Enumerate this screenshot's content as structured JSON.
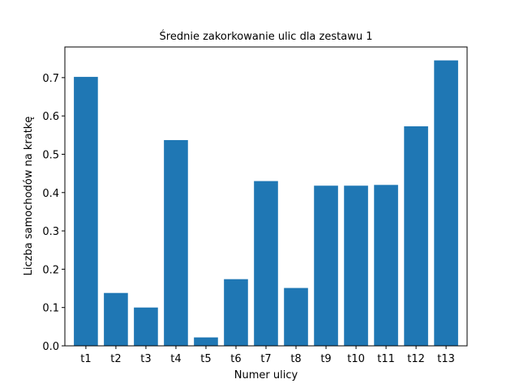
{
  "chart_data": {
    "type": "bar",
    "title": "Średnie zakorkowanie ulic dla zestawu 1",
    "xlabel": "Numer ulicy",
    "ylabel": "Liczba samochodów na kratkę",
    "categories": [
      "t1",
      "t2",
      "t3",
      "t4",
      "t5",
      "t6",
      "t7",
      "t8",
      "t9",
      "t10",
      "t11",
      "t12",
      "t13"
    ],
    "values": [
      0.702,
      0.138,
      0.1,
      0.537,
      0.022,
      0.174,
      0.43,
      0.151,
      0.418,
      0.418,
      0.42,
      0.573,
      0.745
    ],
    "ylim": [
      0,
      0.78
    ],
    "yticks": [
      "0.0",
      "0.1",
      "0.2",
      "0.3",
      "0.4",
      "0.5",
      "0.6",
      "0.7"
    ],
    "bar_color": "#1f77b4",
    "grid": false,
    "legend": "none"
  }
}
